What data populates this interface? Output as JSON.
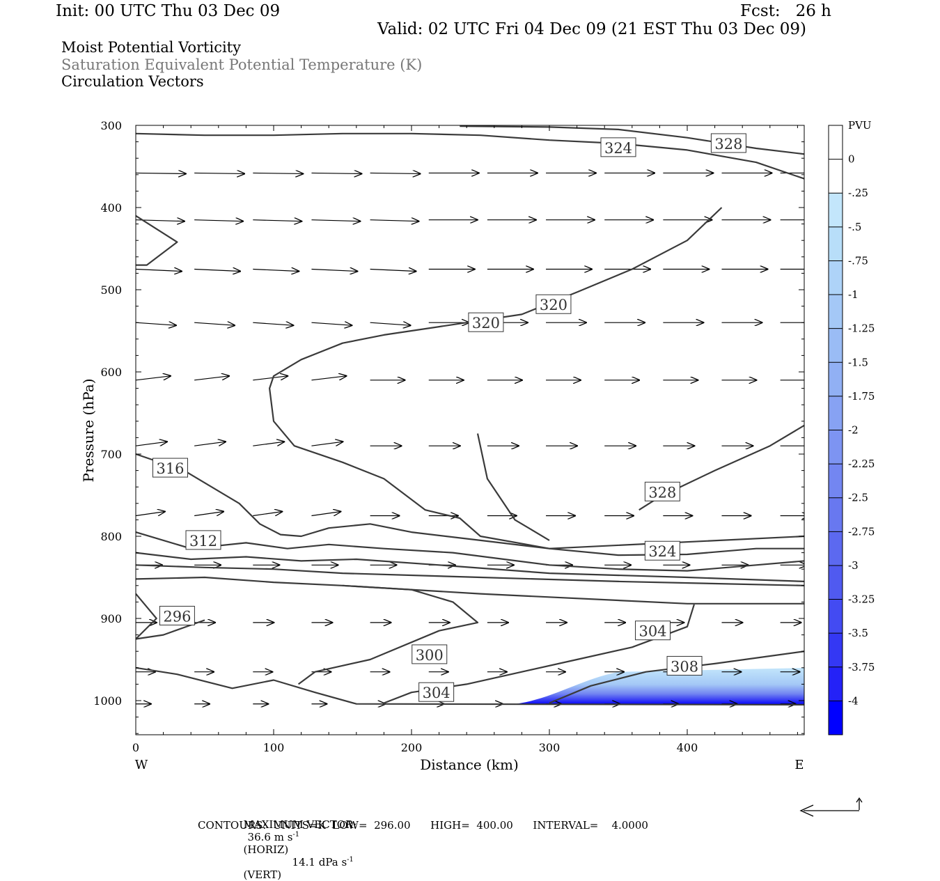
{
  "header": {
    "init": "Init: 00 UTC Thu 03 Dec 09",
    "fcst": "Fcst:   26 h",
    "valid": "Valid: 02 UTC Fri 04 Dec 09 (21 EST Thu 03 Dec 09)",
    "field1": "Moist Potential Vorticity",
    "field2": "Saturation Equivalent Potential Temperature (K)",
    "field3": "Circulation Vectors"
  },
  "footer": {
    "max_vector_label": "MAXIMUM VECTOR:",
    "max_horiz": "36.6 m s",
    "horiz_tag": "(HORIZ)",
    "max_vert": "14.1 dPa s",
    "vert_tag": "(VERT)",
    "exp": "-1",
    "contours_line": "CONTOURS:  UNITS=K  LOW=  296.00      HIGH=  400.00      INTERVAL=    4.0000"
  },
  "colors": {
    "contour": "#3a3a3a",
    "pv_light": "#bfe3fb",
    "pv_dark": "#0000ff"
  },
  "chart_data": {
    "type": "contour",
    "xlabel": "Distance (km)",
    "ylabel": "Pressure (hPa)",
    "xlim": [
      0,
      485
    ],
    "ylim": [
      1040,
      300
    ],
    "x_ticks": [
      0,
      100,
      200,
      300,
      400
    ],
    "y_ticks": [
      300,
      400,
      500,
      600,
      700,
      800,
      900,
      1000
    ],
    "x_end_labels": {
      "west": "W",
      "east": "E"
    },
    "colorbar": {
      "unit": "PVU",
      "labels": [
        "0",
        "-.25",
        "-.5",
        "-.75",
        "-1",
        "-1.25",
        "-1.5",
        "-1.75",
        "-2",
        "-2.25",
        "-2.5",
        "-2.75",
        "-3",
        "-3.25",
        "-3.5",
        "-3.75",
        "-4"
      ],
      "colors": [
        "#ffffff",
        "#c3e6fb",
        "#b8def9",
        "#aed3f8",
        "#a4c8f6",
        "#9abcf5",
        "#91b0f4",
        "#87a2f3",
        "#7d94f2",
        "#7386f1",
        "#6878f0",
        "#5c69f0",
        "#505af0",
        "#434bf2",
        "#3438f4",
        "#2422f7",
        "#0000ff"
      ]
    },
    "contour_labels": [
      {
        "text": "324",
        "x": 350,
        "p": 327
      },
      {
        "text": "328",
        "x": 430,
        "p": 322
      },
      {
        "text": "320",
        "x": 303,
        "p": 518
      },
      {
        "text": "320",
        "x": 254,
        "p": 540
      },
      {
        "text": "316",
        "x": 25,
        "p": 717
      },
      {
        "text": "312",
        "x": 49,
        "p": 805
      },
      {
        "text": "328",
        "x": 382,
        "p": 746
      },
      {
        "text": "324",
        "x": 382,
        "p": 818
      },
      {
        "text": "296",
        "x": 30,
        "p": 897
      },
      {
        "text": "300",
        "x": 213,
        "p": 944
      },
      {
        "text": "304",
        "x": 375,
        "p": 915
      },
      {
        "text": "308",
        "x": 398,
        "p": 958
      },
      {
        "text": "304",
        "x": 218,
        "p": 990
      }
    ],
    "contours": [
      [
        [
          0,
          310
        ],
        [
          50,
          312
        ],
        [
          100,
          312
        ],
        [
          150,
          310
        ],
        [
          200,
          310
        ],
        [
          250,
          312
        ],
        [
          300,
          318
        ],
        [
          350,
          322
        ],
        [
          400,
          330
        ],
        [
          450,
          345
        ],
        [
          485,
          365
        ]
      ],
      [
        [
          235,
          301
        ],
        [
          300,
          302
        ],
        [
          350,
          305
        ],
        [
          400,
          315
        ],
        [
          450,
          328
        ],
        [
          485,
          335
        ]
      ],
      [
        [
          425,
          400
        ],
        [
          400,
          440
        ],
        [
          360,
          475
        ],
        [
          320,
          503
        ],
        [
          280,
          530
        ],
        [
          220,
          545
        ],
        [
          180,
          555
        ],
        [
          150,
          565
        ],
        [
          120,
          585
        ],
        [
          100,
          605
        ],
        [
          97,
          620
        ],
        [
          100,
          660
        ],
        [
          115,
          690
        ],
        [
          150,
          710
        ],
        [
          180,
          730
        ],
        [
          210,
          768
        ],
        [
          235,
          778
        ],
        [
          250,
          800
        ],
        [
          300,
          815
        ],
        [
          350,
          823
        ],
        [
          400,
          822
        ],
        [
          450,
          815
        ],
        [
          485,
          815
        ]
      ],
      [
        [
          0,
          410
        ],
        [
          30,
          442
        ],
        [
          8,
          470
        ],
        [
          0,
          470
        ]
      ],
      [
        [
          0,
          700
        ],
        [
          35,
          720
        ],
        [
          55,
          740
        ],
        [
          75,
          760
        ],
        [
          90,
          785
        ],
        [
          105,
          798
        ],
        [
          120,
          800
        ],
        [
          140,
          790
        ],
        [
          170,
          785
        ],
        [
          200,
          795
        ],
        [
          250,
          805
        ],
        [
          300,
          815
        ],
        [
          485,
          800
        ]
      ],
      [
        [
          0,
          795
        ],
        [
          40,
          815
        ],
        [
          80,
          808
        ],
        [
          110,
          815
        ],
        [
          140,
          810
        ],
        [
          180,
          815
        ],
        [
          230,
          820
        ],
        [
          300,
          835
        ],
        [
          350,
          840
        ],
        [
          400,
          842
        ],
        [
          450,
          835
        ],
        [
          485,
          830
        ]
      ],
      [
        [
          0,
          820
        ],
        [
          40,
          828
        ],
        [
          80,
          825
        ],
        [
          120,
          830
        ],
        [
          160,
          828
        ],
        [
          220,
          835
        ],
        [
          300,
          845
        ],
        [
          400,
          850
        ],
        [
          485,
          855
        ]
      ],
      [
        [
          0,
          835
        ],
        [
          50,
          838
        ],
        [
          100,
          840
        ],
        [
          150,
          845
        ],
        [
          250,
          850
        ],
        [
          350,
          855
        ],
        [
          485,
          860
        ]
      ],
      [
        [
          0,
          852
        ],
        [
          50,
          850
        ],
        [
          100,
          856
        ],
        [
          150,
          860
        ],
        [
          250,
          870
        ],
        [
          400,
          882
        ],
        [
          485,
          882
        ]
      ],
      [
        [
          0,
          870
        ],
        [
          10,
          890
        ],
        [
          15,
          900
        ],
        [
          0,
          925
        ],
        [
          20,
          920
        ],
        [
          50,
          902
        ]
      ],
      [
        [
          118,
          980
        ],
        [
          130,
          965
        ],
        [
          170,
          950
        ],
        [
          220,
          915
        ],
        [
          248,
          905
        ],
        [
          230,
          880
        ],
        [
          200,
          865
        ],
        [
          150,
          860
        ]
      ],
      [
        [
          180,
          1003
        ],
        [
          200,
          990
        ],
        [
          240,
          980
        ],
        [
          280,
          965
        ],
        [
          320,
          950
        ],
        [
          360,
          935
        ],
        [
          400,
          910
        ],
        [
          405,
          883
        ]
      ],
      [
        [
          0,
          960
        ],
        [
          30,
          968
        ],
        [
          70,
          985
        ],
        [
          100,
          975
        ],
        [
          130,
          990
        ],
        [
          160,
          1004
        ],
        [
          485,
          1005
        ]
      ],
      [
        [
          300,
          1003
        ],
        [
          330,
          982
        ],
        [
          370,
          965
        ],
        [
          420,
          955
        ],
        [
          485,
          940
        ]
      ],
      [
        [
          365,
          768
        ],
        [
          380,
          752
        ],
        [
          420,
          720
        ],
        [
          460,
          690
        ],
        [
          485,
          665
        ]
      ],
      [
        [
          248,
          675
        ],
        [
          255,
          730
        ],
        [
          275,
          780
        ],
        [
          300,
          805
        ]
      ]
    ],
    "pv_region": {
      "x_start": 270,
      "x_end": 485,
      "p_top": 960,
      "p_bottom": 1005,
      "min_pvu": -4
    }
  }
}
